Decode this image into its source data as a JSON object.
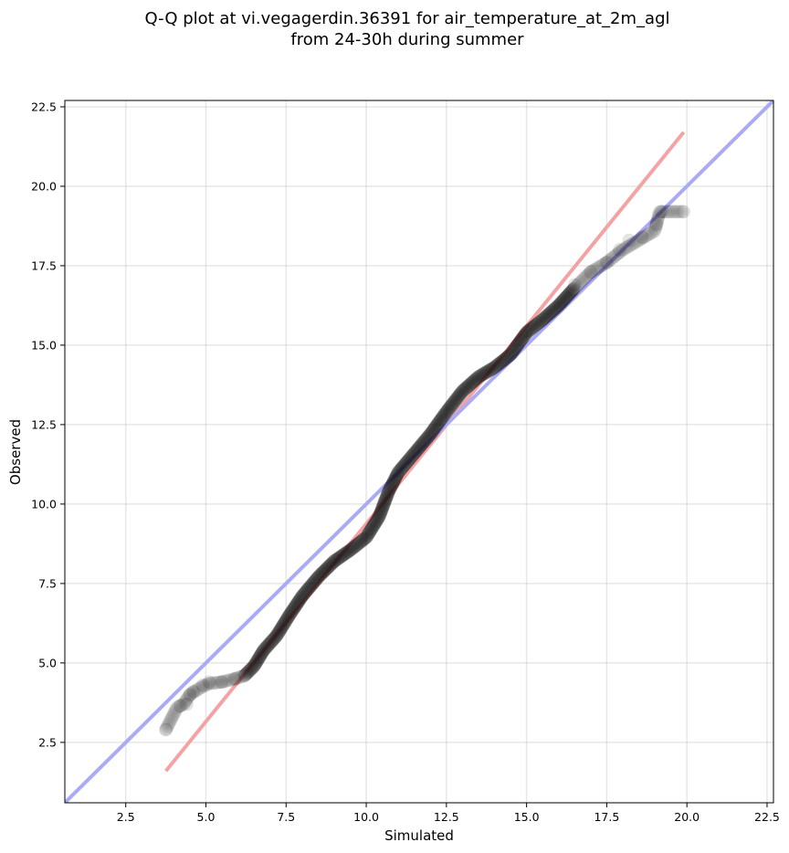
{
  "chart_data": {
    "type": "scatter",
    "title_lines": [
      "Q-Q plot at vi.vegagerdin.36391 for air_temperature_at_2m_agl",
      "from 24-30h during summer"
    ],
    "xlabel": "Simulated",
    "ylabel": "Observed",
    "xlim": [
      0.6,
      22.7
    ],
    "ylim": [
      0.6,
      22.7
    ],
    "x_ticks": [
      2.5,
      5.0,
      7.5,
      10.0,
      12.5,
      15.0,
      17.5,
      20.0,
      22.5
    ],
    "y_ticks": [
      2.5,
      5.0,
      7.5,
      10.0,
      12.5,
      15.0,
      17.5,
      20.0,
      22.5
    ],
    "x_tick_labels": [
      "2.5",
      "5.0",
      "7.5",
      "10.0",
      "12.5",
      "15.0",
      "17.5",
      "20.0",
      "22.5"
    ],
    "y_tick_labels": [
      "2.5",
      "5.0",
      "7.5",
      "10.0",
      "12.5",
      "15.0",
      "17.5",
      "20.0",
      "22.5"
    ],
    "grid": true,
    "point_color": "#000000",
    "quantile_curve": [
      [
        3.75,
        2.9
      ],
      [
        4.1,
        3.6
      ],
      [
        4.3,
        3.7
      ],
      [
        4.5,
        4.0
      ],
      [
        4.8,
        4.2
      ],
      [
        5.1,
        4.35
      ],
      [
        5.5,
        4.4
      ],
      [
        5.9,
        4.5
      ],
      [
        6.2,
        4.6
      ],
      [
        6.5,
        4.9
      ],
      [
        6.8,
        5.4
      ],
      [
        7.2,
        5.85
      ],
      [
        7.6,
        6.5
      ],
      [
        8.0,
        7.1
      ],
      [
        8.5,
        7.7
      ],
      [
        9.0,
        8.2
      ],
      [
        9.5,
        8.55
      ],
      [
        10.0,
        8.95
      ],
      [
        10.4,
        9.6
      ],
      [
        10.7,
        10.4
      ],
      [
        11.0,
        11.0
      ],
      [
        11.5,
        11.6
      ],
      [
        12.0,
        12.2
      ],
      [
        12.5,
        12.9
      ],
      [
        13.0,
        13.55
      ],
      [
        13.5,
        14.0
      ],
      [
        14.0,
        14.3
      ],
      [
        14.5,
        14.7
      ],
      [
        15.0,
        15.4
      ],
      [
        15.5,
        15.8
      ],
      [
        16.0,
        16.25
      ],
      [
        16.5,
        16.8
      ],
      [
        17.0,
        17.3
      ],
      [
        17.5,
        17.6
      ],
      [
        18.0,
        18.0
      ],
      [
        18.5,
        18.3
      ],
      [
        19.0,
        18.6
      ],
      [
        19.15,
        19.2
      ],
      [
        19.9,
        19.2
      ]
    ],
    "tail_points": [
      [
        3.75,
        2.9
      ],
      [
        4.2,
        3.65
      ],
      [
        4.4,
        3.7
      ],
      [
        4.5,
        4.0
      ],
      [
        4.6,
        4.1
      ],
      [
        4.9,
        4.3
      ],
      [
        5.1,
        4.4
      ],
      [
        5.5,
        4.4
      ],
      [
        5.9,
        4.5
      ],
      [
        16.5,
        16.9
      ],
      [
        17.0,
        17.3
      ],
      [
        17.5,
        17.6
      ],
      [
        17.9,
        18.0
      ],
      [
        18.2,
        18.3
      ],
      [
        18.6,
        18.4
      ],
      [
        19.05,
        18.8
      ],
      [
        19.2,
        19.2
      ],
      [
        19.9,
        19.2
      ]
    ],
    "series": [
      {
        "color": "#f4a3a5",
        "x": [
          3.75,
          19.9
        ],
        "y": [
          1.6,
          21.7
        ]
      },
      {
        "color": "#aaaaf5",
        "x": [
          0.6,
          22.7
        ],
        "y": [
          0.6,
          22.7
        ]
      }
    ]
  }
}
